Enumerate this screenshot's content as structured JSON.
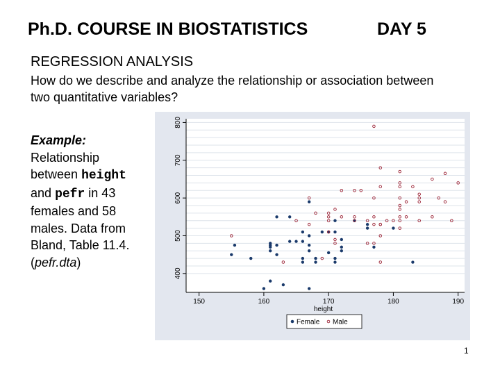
{
  "slide": {
    "title": "Ph.D. COURSE IN BIOSTATISTICS",
    "day": "DAY 5",
    "heading": "REGRESSION ANALYSIS",
    "question": "How do we describe and analyze the relationship or association between two quantitative variables?",
    "example": {
      "label": "Example:",
      "t1": "Relationship between",
      "var1": "height",
      "t2": "and",
      "var2": "pefr",
      "t3": "in 43 females and 58 males. Data from Bland, Table 11.4. (",
      "file": "pefr.dta",
      "t4": ")"
    },
    "page_number": "1"
  },
  "colors": {
    "panel_bg": "#e3e7ef",
    "plot_bg": "#ffffff",
    "grid": "#dde3ea",
    "female": "#1a3a6b",
    "male": "#9b2335"
  },
  "chart_data": {
    "type": "scatter",
    "title": "",
    "xlabel": "height",
    "ylabel": "",
    "xlim": [
      148,
      191
    ],
    "ylim": [
      350,
      810
    ],
    "xticks": [
      150,
      160,
      170,
      180,
      190
    ],
    "yticks": [
      400,
      500,
      600,
      700,
      800
    ],
    "grid": true,
    "legend_position": "bottom",
    "series": [
      {
        "name": "Female",
        "marker": "filled",
        "points": [
          [
            155,
            450
          ],
          [
            155.5,
            475
          ],
          [
            158,
            440
          ],
          [
            160,
            360
          ],
          [
            161,
            380
          ],
          [
            161,
            470
          ],
          [
            161,
            460
          ],
          [
            161,
            475
          ],
          [
            161,
            480
          ],
          [
            162,
            450
          ],
          [
            162,
            475
          ],
          [
            162,
            550
          ],
          [
            163,
            370
          ],
          [
            164,
            550
          ],
          [
            164,
            485
          ],
          [
            165,
            485
          ],
          [
            166,
            430
          ],
          [
            166,
            440
          ],
          [
            166,
            485
          ],
          [
            166,
            510
          ],
          [
            167,
            360
          ],
          [
            167,
            475
          ],
          [
            167,
            590
          ],
          [
            167,
            500
          ],
          [
            167,
            460
          ],
          [
            168,
            440
          ],
          [
            168,
            430
          ],
          [
            169,
            510
          ],
          [
            170,
            455
          ],
          [
            170,
            510
          ],
          [
            171,
            430
          ],
          [
            171,
            440
          ],
          [
            171,
            510
          ],
          [
            171,
            540
          ],
          [
            172,
            460
          ],
          [
            172,
            470
          ],
          [
            172,
            490
          ],
          [
            174,
            540
          ],
          [
            176,
            520
          ],
          [
            176,
            530
          ],
          [
            177,
            470
          ],
          [
            180,
            520
          ],
          [
            183,
            430
          ]
        ]
      },
      {
        "name": "Male",
        "marker": "hollow",
        "points": [
          [
            155,
            500
          ],
          [
            163,
            430
          ],
          [
            165,
            540
          ],
          [
            167,
            530
          ],
          [
            167,
            600
          ],
          [
            168,
            560
          ],
          [
            169,
            440
          ],
          [
            170,
            540
          ],
          [
            170,
            550
          ],
          [
            170,
            560
          ],
          [
            170,
            510
          ],
          [
            171,
            490
          ],
          [
            171,
            570
          ],
          [
            171,
            480
          ],
          [
            172,
            550
          ],
          [
            172,
            620
          ],
          [
            174,
            540
          ],
          [
            174,
            550
          ],
          [
            174,
            620
          ],
          [
            175,
            620
          ],
          [
            176,
            540
          ],
          [
            176,
            480
          ],
          [
            177,
            790
          ],
          [
            177,
            550
          ],
          [
            177,
            530
          ],
          [
            177,
            600
          ],
          [
            177,
            480
          ],
          [
            178,
            680
          ],
          [
            178,
            630
          ],
          [
            178,
            530
          ],
          [
            178,
            500
          ],
          [
            178,
            430
          ],
          [
            179,
            540
          ],
          [
            180,
            540
          ],
          [
            181,
            670
          ],
          [
            181,
            640
          ],
          [
            181,
            630
          ],
          [
            181,
            600
          ],
          [
            181,
            580
          ],
          [
            181,
            570
          ],
          [
            181,
            550
          ],
          [
            181,
            540
          ],
          [
            181,
            520
          ],
          [
            182,
            590
          ],
          [
            182,
            550
          ],
          [
            183,
            630
          ],
          [
            184,
            610
          ],
          [
            184,
            600
          ],
          [
            184,
            590
          ],
          [
            184,
            540
          ],
          [
            186,
            650
          ],
          [
            186,
            550
          ],
          [
            187,
            600
          ],
          [
            188,
            665
          ],
          [
            188,
            590
          ],
          [
            189,
            540
          ],
          [
            190,
            640
          ],
          [
            178,
            530
          ]
        ]
      }
    ]
  }
}
